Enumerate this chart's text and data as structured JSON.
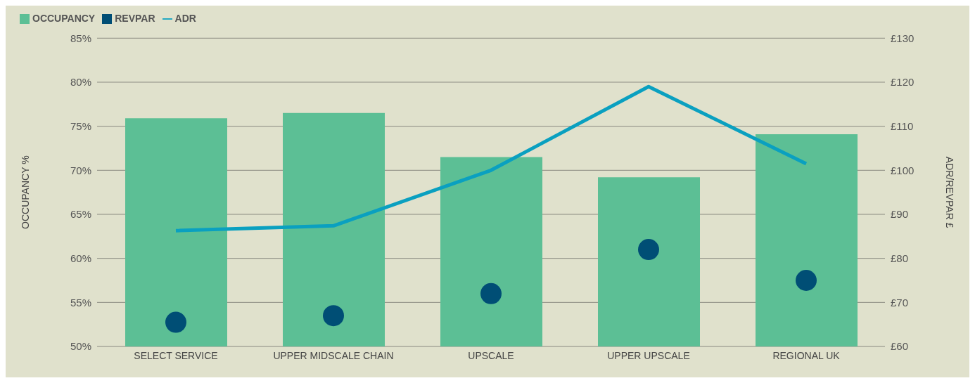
{
  "chart_data": {
    "type": "bar",
    "ylabel": "OCCUPANCY %",
    "y2label": "ADR/REVPAR £",
    "categories": [
      "SELECT SERVICE",
      "UPPER MIDSCALE CHAIN",
      "UPSCALE",
      "UPPER UPSCALE",
      "REGIONAL UK"
    ],
    "series": [
      {
        "name": "OCCUPANCY",
        "color": "#5cbf95",
        "values": [
          75.9,
          76.5,
          71.5,
          69.2,
          74.1
        ]
      },
      {
        "name": "REVPAR",
        "type": "scatter",
        "axis": "y2",
        "color": "#004e75",
        "values": [
          65.5,
          67,
          72,
          82,
          75
        ]
      },
      {
        "name": "ADR",
        "type": "line",
        "axis": "y2",
        "color": "#0aa0c0",
        "values": [
          86.3,
          87.4,
          100,
          119,
          101.5
        ]
      }
    ],
    "ylim": [
      50,
      85
    ],
    "yticks": [
      {
        "value": 50,
        "label": "50%"
      },
      {
        "value": 55,
        "label": "55%"
      },
      {
        "value": 60,
        "label": "60%"
      },
      {
        "value": 65,
        "label": "65%"
      },
      {
        "value": 70,
        "label": "70%"
      },
      {
        "value": 75,
        "label": "75%"
      },
      {
        "value": 80,
        "label": "80%"
      },
      {
        "value": 85,
        "label": "85%"
      }
    ],
    "y2lim": [
      60,
      130
    ],
    "y2ticks": [
      {
        "value": 60,
        "label": "£60"
      },
      {
        "value": 70,
        "label": "£70"
      },
      {
        "value": 80,
        "label": "£80"
      },
      {
        "value": 90,
        "label": "£90"
      },
      {
        "value": 100,
        "label": "£100"
      },
      {
        "value": 110,
        "label": "£110"
      },
      {
        "value": 120,
        "label": "£120"
      },
      {
        "value": 130,
        "label": "£130"
      }
    ],
    "grid": "y",
    "legend": "top left"
  }
}
